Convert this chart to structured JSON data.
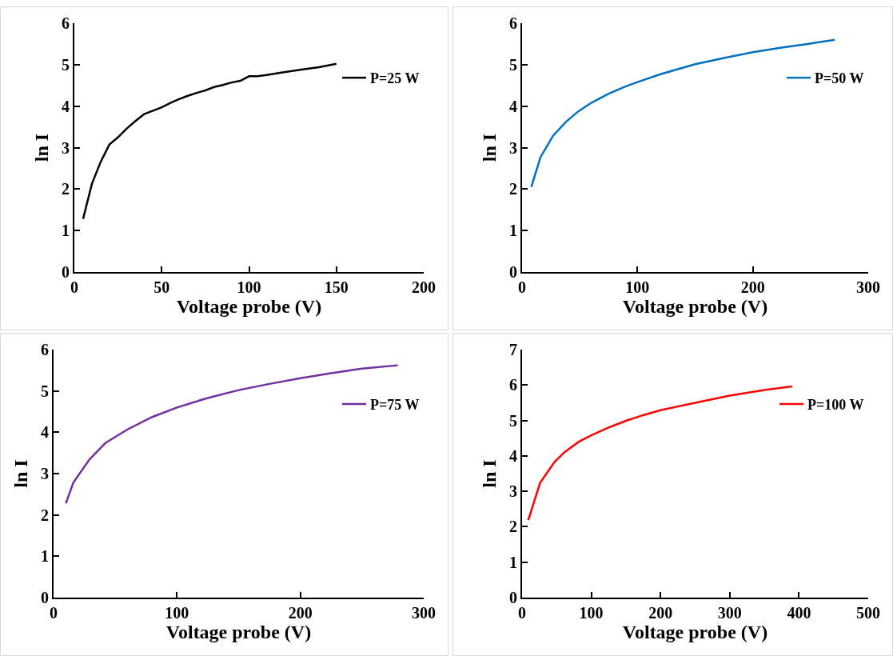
{
  "chart_data": [
    {
      "type": "line",
      "xlabel": "Voltage probe (V)",
      "ylabel": "ln I",
      "xlim": [
        0,
        200
      ],
      "xticks": [
        0,
        50,
        100,
        150,
        200
      ],
      "ylim": [
        0,
        6
      ],
      "yticks": [
        0,
        1,
        2,
        3,
        4,
        5,
        6
      ],
      "grid": false,
      "legend": "right",
      "marker": "none",
      "line_style": "solid",
      "x": [
        5,
        10,
        15,
        20,
        25,
        30,
        35,
        40,
        45,
        50,
        55,
        60,
        65,
        70,
        75,
        80,
        85,
        90,
        95,
        100,
        105,
        110,
        120,
        130,
        140,
        150
      ],
      "series": [
        {
          "name": "P=25 W",
          "color": "#000000",
          "values": [
            1.28,
            2.12,
            2.65,
            3.07,
            3.25,
            3.46,
            3.64,
            3.81,
            3.89,
            3.97,
            4.08,
            4.17,
            4.25,
            4.32,
            4.38,
            4.46,
            4.51,
            4.57,
            4.61,
            4.72,
            4.72,
            4.75,
            4.82,
            4.88,
            4.94,
            5.02
          ]
        }
      ]
    },
    {
      "type": "line",
      "xlabel": "Voltage probe (V)",
      "ylabel": "ln I",
      "xlim": [
        0,
        300
      ],
      "xticks": [
        0,
        100,
        200,
        300
      ],
      "ylim": [
        0,
        6
      ],
      "yticks": [
        0,
        1,
        2,
        3,
        4,
        5,
        6
      ],
      "grid": false,
      "legend": "right",
      "marker": "none",
      "line_style": "solid",
      "x": [
        8,
        16,
        27,
        38,
        49,
        60,
        75,
        90,
        100,
        120,
        150,
        175,
        200,
        225,
        250,
        271
      ],
      "series": [
        {
          "name": "P=50 W",
          "color": "#0070c0",
          "values": [
            2.05,
            2.77,
            3.29,
            3.62,
            3.88,
            4.08,
            4.3,
            4.48,
            4.58,
            4.77,
            5.01,
            5.16,
            5.3,
            5.41,
            5.51,
            5.6
          ]
        }
      ]
    },
    {
      "type": "line",
      "xlabel": "Voltage probe (V)",
      "ylabel": "ln I",
      "xlim": [
        0,
        300
      ],
      "xticks": [
        0,
        100,
        200,
        300
      ],
      "ylim": [
        0,
        6
      ],
      "yticks": [
        0,
        1,
        2,
        3,
        4,
        5,
        6
      ],
      "grid": false,
      "legend": "right",
      "marker": "none",
      "line_style": "solid",
      "x": [
        10,
        16,
        29,
        42,
        60,
        80,
        100,
        125,
        150,
        175,
        200,
        225,
        250,
        279
      ],
      "series": [
        {
          "name": "P=75 W",
          "color": "#7030a0",
          "values": [
            2.28,
            2.78,
            3.34,
            3.74,
            4.07,
            4.37,
            4.6,
            4.83,
            5.02,
            5.17,
            5.31,
            5.43,
            5.54,
            5.62
          ]
        }
      ]
    },
    {
      "type": "line",
      "xlabel": "Voltage probe (V)",
      "ylabel": "ln I",
      "xlim": [
        0,
        500
      ],
      "xticks": [
        0,
        100,
        200,
        300,
        400,
        500
      ],
      "ylim": [
        0,
        7
      ],
      "yticks": [
        0,
        1,
        2,
        3,
        4,
        5,
        6,
        7
      ],
      "grid": false,
      "legend": "right",
      "marker": "none",
      "line_style": "solid",
      "x": [
        9,
        26,
        47,
        61,
        82,
        100,
        125,
        150,
        175,
        200,
        250,
        300,
        350,
        390
      ],
      "series": [
        {
          "name": "P=100 W",
          "color": "#ff0000",
          "values": [
            2.19,
            3.24,
            3.83,
            4.1,
            4.4,
            4.58,
            4.8,
            4.99,
            5.15,
            5.29,
            5.5,
            5.7,
            5.86,
            5.96
          ]
        }
      ]
    }
  ]
}
